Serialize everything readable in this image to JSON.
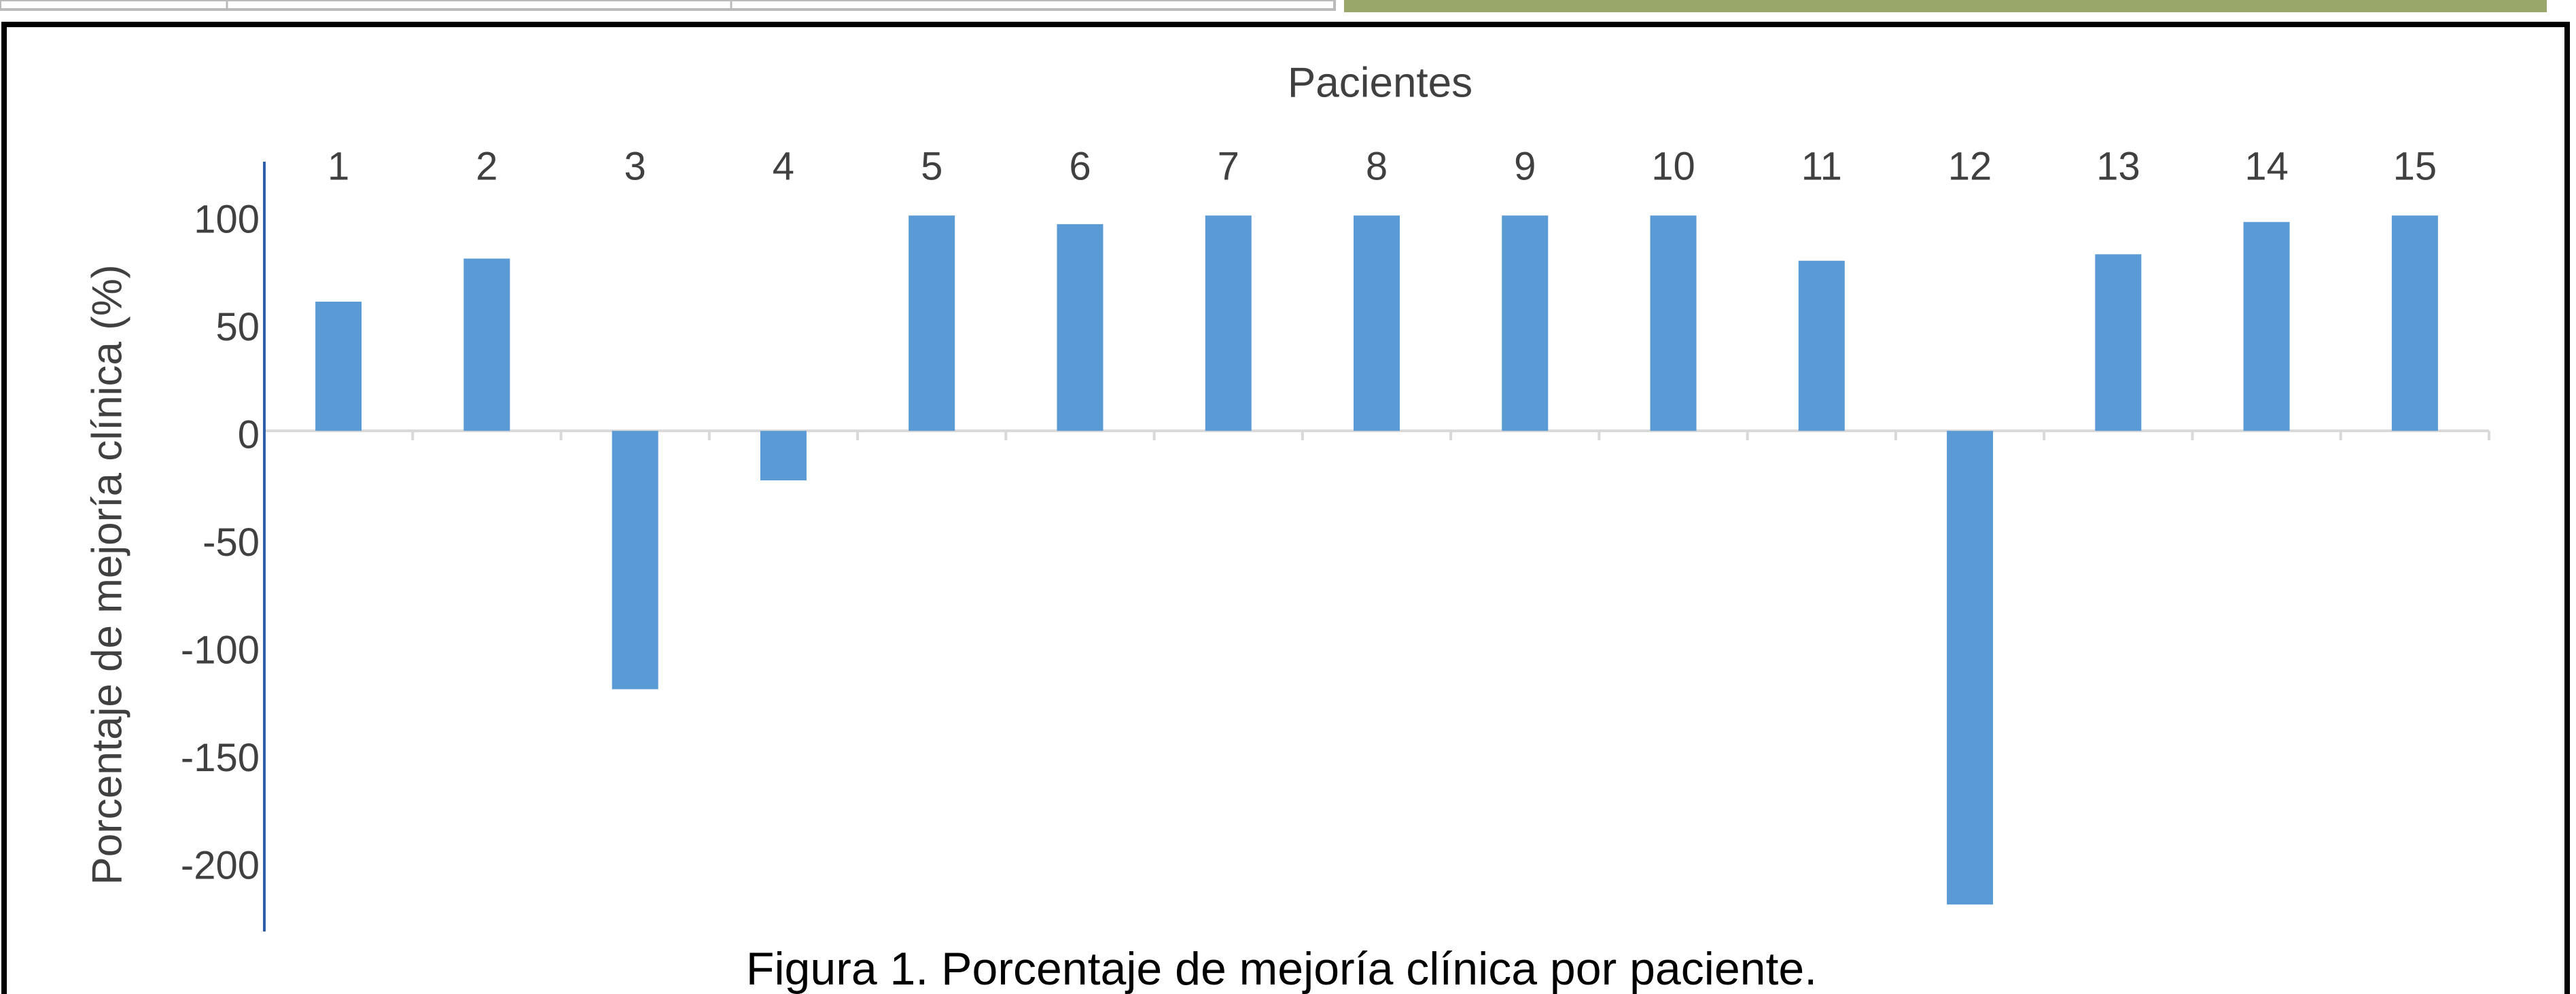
{
  "chart_data": {
    "type": "bar",
    "title": "Pacientes",
    "y_label": "Porcentaje de mejoría clínica (%)",
    "caption": "Figura 1. Porcentaje de mejoría clínica por paciente.",
    "categories": [
      "1",
      "2",
      "3",
      "4",
      "5",
      "6",
      "7",
      "8",
      "9",
      "10",
      "11",
      "12",
      "13",
      "14",
      "15"
    ],
    "values": [
      60,
      80,
      -120,
      -23,
      100,
      96,
      100,
      100,
      100,
      100,
      79,
      -220,
      82,
      97,
      100
    ],
    "color": "#5b9bd5",
    "ylim": [
      -230,
      125
    ],
    "yticks": [
      -200,
      -150,
      -100,
      -50,
      0,
      50,
      100
    ],
    "grid": false
  }
}
